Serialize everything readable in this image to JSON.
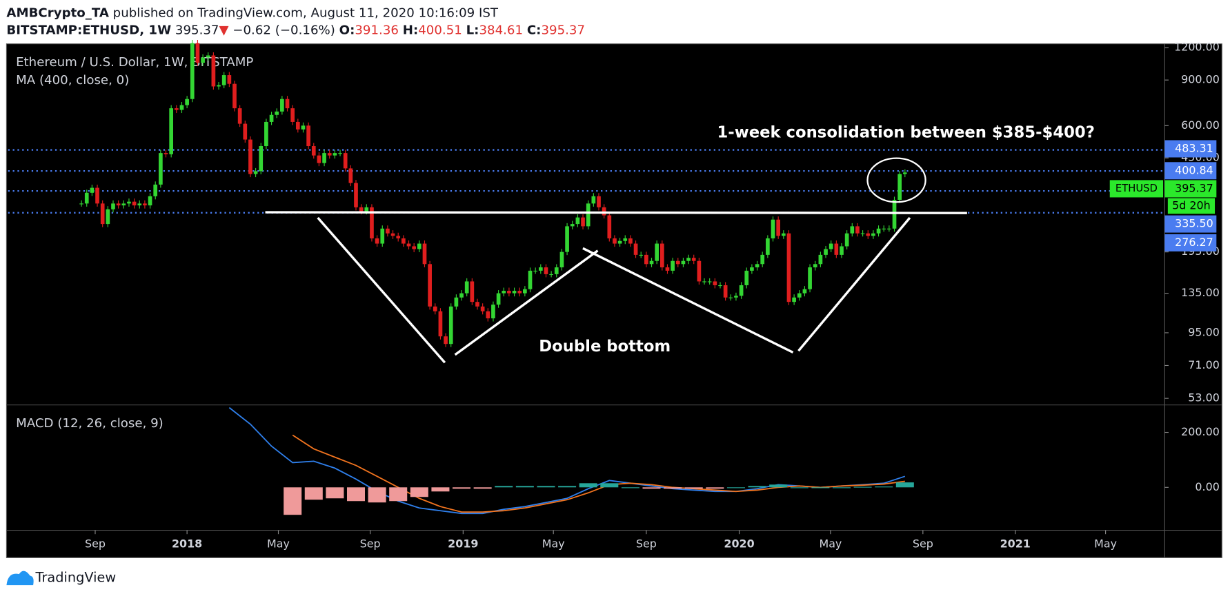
{
  "header": {
    "author": "AMBCrypto_TA",
    "published": "published on TradingView.com, August 11, 2020 10:16:09 IST",
    "symbol": "BITSTAMP:ETHUSD, 1W",
    "last": 395.37,
    "arrow": "▼",
    "change": "−0.62 (−0.16%)",
    "o_label": "O:",
    "open": 391.36,
    "h_label": "H:",
    "high": 400.51,
    "l_label": "L:",
    "low": 384.61,
    "c_label": "C:",
    "close": 395.37
  },
  "footer": {
    "brand": "TradingView"
  },
  "chart_data": [
    {
      "type": "candlestick",
      "title": "Ethereum / U.S. Dollar, 1W, BITSTAMP",
      "indicator": "MA (400, close, 0)",
      "log": true,
      "grid": false,
      "up_color": "#33d633",
      "down_color": "#e01e1e",
      "closes": [
        300,
        330,
        345,
        300,
        250,
        285,
        300,
        295,
        300,
        305,
        295,
        300,
        295,
        320,
        355,
        470,
        465,
        700,
        690,
        720,
        760,
        1250,
        1050,
        1100,
        1120,
        850,
        860,
        940,
        870,
        700,
        610,
        530,
        390,
        400,
        500,
        620,
        660,
        680,
        760,
        700,
        620,
        580,
        600,
        500,
        460,
        430,
        470,
        460,
        470,
        470,
        410,
        360,
        290,
        280,
        290,
        220,
        210,
        240,
        230,
        225,
        220,
        210,
        205,
        200,
        210,
        175,
        120,
        115,
        92,
        86,
        120,
        130,
        135,
        150,
        125,
        120,
        115,
        108,
        122,
        135,
        138,
        135,
        138,
        135,
        140,
        165,
        165,
        170,
        160,
        160,
        170,
        195,
        245,
        250,
        265,
        245,
        300,
        320,
        290,
        270,
        220,
        210,
        215,
        220,
        210,
        190,
        190,
        175,
        180,
        210,
        170,
        165,
        180,
        175,
        180,
        185,
        180,
        150,
        150,
        150,
        145,
        145,
        130,
        130,
        132,
        145,
        165,
        170,
        175,
        190,
        220,
        260,
        225,
        230,
        125,
        130,
        135,
        140,
        170,
        175,
        190,
        200,
        210,
        190,
        205,
        230,
        245,
        230,
        230,
        225,
        230,
        240,
        240,
        240,
        310,
        390,
        395.37
      ],
      "xlim": [
        -13.9,
        205.2
      ],
      "xticks": [
        {
          "value": 2.6,
          "label": "Sep"
        },
        {
          "value": 20,
          "label": "2018"
        },
        {
          "value": 37.3,
          "label": "May"
        },
        {
          "value": 54.7,
          "label": "Sep"
        },
        {
          "value": 72.3,
          "label": "2019"
        },
        {
          "value": 89.4,
          "label": "May"
        },
        {
          "value": 107,
          "label": "Sep"
        },
        {
          "value": 124.6,
          "label": "2020"
        },
        {
          "value": 141.9,
          "label": "May"
        },
        {
          "value": 159.4,
          "label": "Sep"
        },
        {
          "value": 176.9,
          "label": "2021"
        },
        {
          "value": 194,
          "label": "May"
        }
      ],
      "ylim": [
        50,
        1233
      ],
      "yticks": [
        {
          "value": 1200,
          "label": "1200.00"
        },
        {
          "value": 900,
          "label": "900.00"
        },
        {
          "value": 600,
          "label": "600.00"
        },
        {
          "value": 450,
          "label": "450.00"
        },
        {
          "value": 195,
          "label": "195.00"
        },
        {
          "value": 135,
          "label": "135.00"
        },
        {
          "value": 95,
          "label": "95.00"
        },
        {
          "value": 71,
          "label": "71.00"
        },
        {
          "value": 53,
          "label": "53.00"
        }
      ],
      "levels": [
        483.31,
        400.84,
        {
          "value": 335.5,
          "label": "335.50"
        },
        276.27
      ],
      "level_color": "#4a7cf0",
      "price_tag": {
        "name": "ETHUSD",
        "value": 395.37,
        "countdown": "5d 20h",
        "color": "#2be82b"
      },
      "annotations": [
        "1-week consolidation between $385-$400?",
        "Double bottom"
      ]
    },
    {
      "type": "macd",
      "title": "MACD (12, 26, close, 9)",
      "x": [
        28,
        32,
        36,
        40,
        44,
        48,
        52,
        56,
        60,
        64,
        68,
        72,
        76,
        80,
        84,
        88,
        92,
        96,
        100,
        104,
        108,
        112,
        116,
        120,
        124,
        128,
        132,
        136,
        140,
        144,
        148,
        152,
        156
      ],
      "series": [
        {
          "name": "MACD",
          "color": "#2f80ed",
          "values": [
            290,
            230,
            150,
            90,
            95,
            70,
            30,
            -15,
            -50,
            -75,
            -85,
            -95,
            -95,
            -80,
            -70,
            -55,
            -40,
            -5,
            25,
            15,
            5,
            -5,
            -10,
            -15,
            -15,
            -5,
            10,
            5,
            0,
            5,
            10,
            15,
            40
          ]
        },
        {
          "name": "Signal",
          "color": "#f2741f",
          "values": [
            null,
            null,
            null,
            190,
            140,
            110,
            80,
            40,
            0,
            -40,
            -70,
            -90,
            -90,
            -85,
            -75,
            -60,
            -45,
            -20,
            10,
            15,
            10,
            0,
            -5,
            -10,
            -15,
            -10,
            0,
            5,
            0,
            5,
            8,
            12,
            22
          ]
        },
        {
          "name": "Histogram",
          "type": "bar",
          "pos_color": "#26a69a",
          "neg_color": "#ef9a9a",
          "values": [
            null,
            null,
            null,
            -100,
            -45,
            -40,
            -50,
            -55,
            -50,
            -35,
            -15,
            -5,
            -5,
            5,
            5,
            5,
            5,
            15,
            15,
            0,
            -5,
            -5,
            -5,
            -5,
            0,
            5,
            10,
            0,
            0,
            0,
            2,
            3,
            18
          ]
        }
      ],
      "ylim": [
        -156,
        300
      ],
      "yticks": [
        {
          "value": 200,
          "label": "200.00"
        },
        {
          "value": 0,
          "label": "0.00"
        }
      ]
    }
  ]
}
